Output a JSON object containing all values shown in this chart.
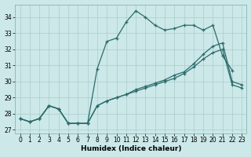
{
  "xlabel": "Humidex (Indice chaleur)",
  "bg_color": "#cce8e8",
  "grid_color": "#aacccc",
  "line_color": "#2d6b6b",
  "xlim": [
    -0.5,
    23.5
  ],
  "ylim": [
    26.8,
    34.8
  ],
  "yticks": [
    27,
    28,
    29,
    30,
    31,
    32,
    33,
    34
  ],
  "xticks": [
    0,
    1,
    2,
    3,
    4,
    5,
    6,
    7,
    8,
    9,
    10,
    11,
    12,
    13,
    14,
    15,
    16,
    17,
    18,
    19,
    20,
    21,
    22,
    23
  ],
  "line1_x": [
    0,
    1,
    2,
    3,
    4,
    5,
    6,
    7,
    8,
    9,
    10,
    11,
    12,
    13,
    14,
    15,
    16,
    17,
    18,
    19,
    20,
    21,
    22
  ],
  "line1_y": [
    27.7,
    27.5,
    27.7,
    28.5,
    28.3,
    27.4,
    27.4,
    27.4,
    30.8,
    32.5,
    32.7,
    33.7,
    34.4,
    34.0,
    33.5,
    33.2,
    33.3,
    33.5,
    33.5,
    33.2,
    33.5,
    31.6,
    30.7
  ],
  "line2_x": [
    0,
    1,
    2,
    3,
    4,
    5,
    6,
    7,
    8,
    9,
    10,
    11,
    12,
    13,
    14,
    15,
    16,
    17,
    18,
    19,
    20,
    21,
    22,
    23
  ],
  "line2_y": [
    27.7,
    27.5,
    27.7,
    28.5,
    28.3,
    27.4,
    27.4,
    27.4,
    28.5,
    28.8,
    29.0,
    29.2,
    29.5,
    29.7,
    29.9,
    30.1,
    30.4,
    30.6,
    31.1,
    31.7,
    32.2,
    32.4,
    30.0,
    29.8
  ],
  "line3_x": [
    0,
    1,
    2,
    3,
    4,
    5,
    6,
    7,
    8,
    9,
    10,
    11,
    12,
    13,
    14,
    15,
    16,
    17,
    18,
    19,
    20,
    21,
    22,
    23
  ],
  "line3_y": [
    27.7,
    27.5,
    27.7,
    28.5,
    28.3,
    27.4,
    27.4,
    27.4,
    28.5,
    28.8,
    29.0,
    29.2,
    29.4,
    29.6,
    29.8,
    30.0,
    30.2,
    30.5,
    30.9,
    31.4,
    31.8,
    32.0,
    29.8,
    29.6
  ]
}
